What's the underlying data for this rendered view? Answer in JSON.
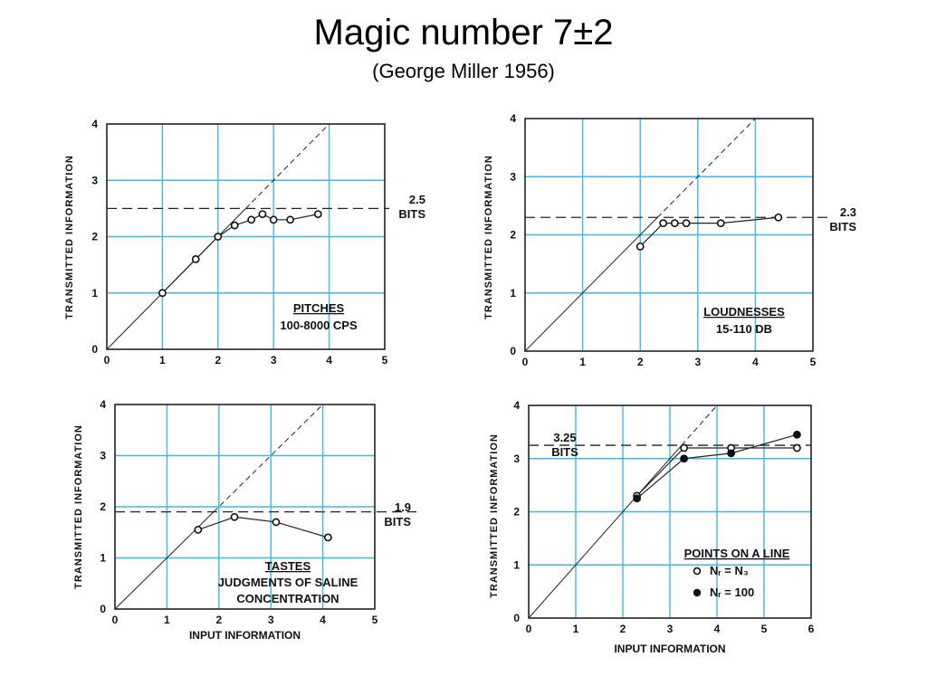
{
  "slide": {
    "title": "Magic number 7±2",
    "subtitle": "(George Miller 1956)"
  },
  "chart_data": [
    {
      "type": "scatter",
      "panel": "top-left",
      "ylabel": "TRANSMITTED INFORMATION",
      "xlabel": "",
      "xlim": [
        0,
        5
      ],
      "ylim": [
        0,
        4
      ],
      "xticks": [
        "0",
        "1",
        "2",
        "3",
        "4",
        "5"
      ],
      "yticks": [
        "0",
        "1",
        "2",
        "3",
        "4"
      ],
      "grid": true,
      "reference_line": "y = x (dashed above x≈2.4)",
      "asymptote": {
        "value": 2.5,
        "labels": [
          "2.5",
          "BITS"
        ]
      },
      "annotation": [
        "PITCHES",
        "100-8000 CPS"
      ],
      "series": [
        {
          "marker": "open",
          "x": [
            1.0,
            1.6,
            2.0,
            2.3,
            2.6,
            2.8,
            3.0,
            3.3,
            3.8
          ],
          "y": [
            1.0,
            1.6,
            2.0,
            2.2,
            2.3,
            2.4,
            2.3,
            2.3,
            2.4
          ]
        }
      ]
    },
    {
      "type": "scatter",
      "panel": "top-right",
      "ylabel": "TRANSMITTED INFORMATION",
      "xlabel": "",
      "xlim": [
        0,
        5
      ],
      "ylim": [
        0,
        4
      ],
      "xticks": [
        "0",
        "1",
        "2",
        "3",
        "4",
        "5"
      ],
      "yticks": [
        "0",
        "1",
        "2",
        "3",
        "4"
      ],
      "grid": true,
      "asymptote": {
        "value": 2.3,
        "labels": [
          "2.3",
          "BITS"
        ]
      },
      "annotation": [
        "LOUDNESSES",
        "15-110 DB"
      ],
      "series": [
        {
          "marker": "open",
          "x": [
            2.0,
            2.4,
            2.6,
            2.8,
            3.4,
            4.4
          ],
          "y": [
            1.8,
            2.2,
            2.2,
            2.2,
            2.2,
            2.3
          ]
        }
      ]
    },
    {
      "type": "scatter",
      "panel": "bottom-left",
      "ylabel": "TRANSMITTED INFORMATION",
      "xlabel": "INPUT INFORMATION",
      "xlim": [
        0,
        5
      ],
      "ylim": [
        0,
        4
      ],
      "xticks": [
        "0",
        "1",
        "2",
        "3",
        "4",
        "5"
      ],
      "yticks": [
        "0",
        "1",
        "2",
        "3",
        "4"
      ],
      "grid": true,
      "asymptote": {
        "value": 1.9,
        "labels": [
          "1.9",
          "BITS"
        ]
      },
      "annotation": [
        "TASTES",
        "JUDGMENTS OF SALINE",
        "CONCENTRATION"
      ],
      "series": [
        {
          "marker": "open",
          "x": [
            1.6,
            2.3,
            3.1,
            4.1
          ],
          "y": [
            1.55,
            1.8,
            1.7,
            1.4
          ]
        }
      ]
    },
    {
      "type": "scatter",
      "panel": "bottom-right",
      "ylabel": "TRANSMITTED INFORMATION",
      "xlabel": "INPUT INFORMATION",
      "xlim": [
        0,
        6
      ],
      "ylim": [
        0,
        4
      ],
      "xticks": [
        "0",
        "1",
        "2",
        "3",
        "4",
        "5",
        "6"
      ],
      "yticks": [
        "0",
        "1",
        "2",
        "3",
        "4"
      ],
      "grid": true,
      "asymptote": {
        "value": 3.25,
        "labels": [
          "3.25",
          "BITS"
        ]
      },
      "annotation": [
        "POINTS ON A LINE"
      ],
      "legend": [
        {
          "marker": "open",
          "label": "Nᵣ = N₃"
        },
        {
          "marker": "filled",
          "label": "Nᵣ = 100"
        }
      ],
      "series": [
        {
          "marker": "open",
          "x": [
            2.3,
            3.3,
            4.3,
            5.7
          ],
          "y": [
            2.3,
            3.2,
            3.2,
            3.2
          ]
        },
        {
          "marker": "filled",
          "x": [
            2.3,
            3.3,
            4.3,
            5.7
          ],
          "y": [
            2.25,
            3.0,
            3.1,
            3.45
          ]
        }
      ]
    }
  ]
}
